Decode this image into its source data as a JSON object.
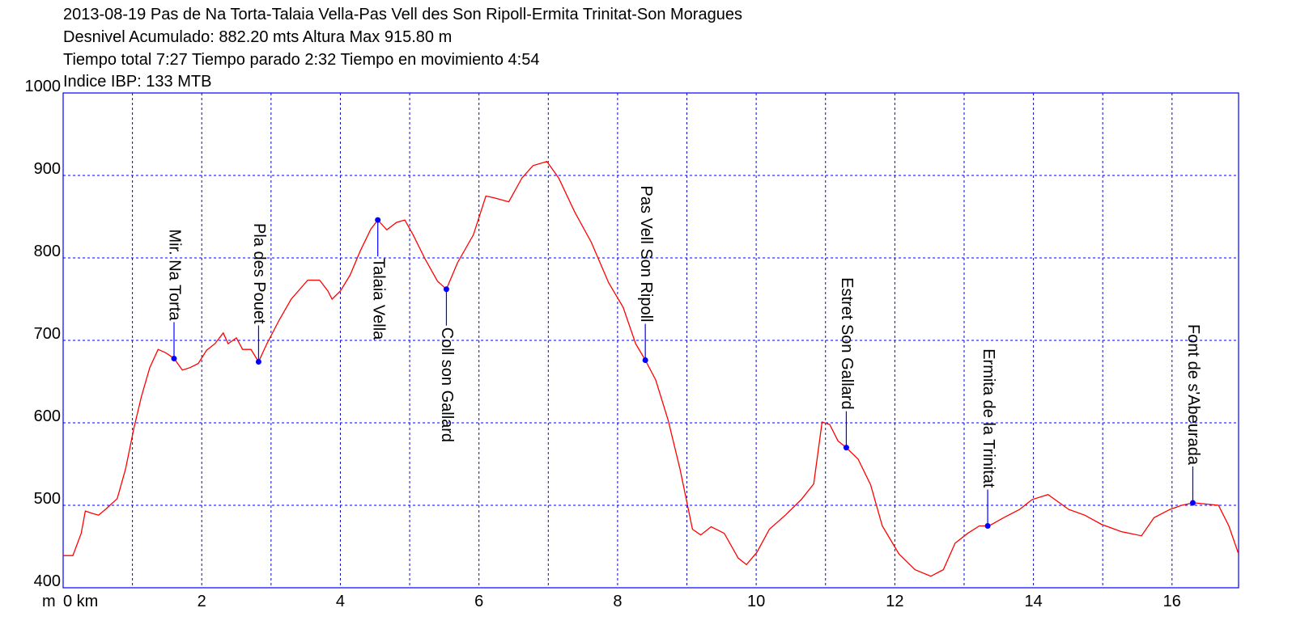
{
  "chart_data": {
    "type": "line",
    "title": "2013-08-19 Pas de Na Torta-Talaia Vella-Pas Vell des Son Ripoll-Ermita Trinitat-Son Moragues",
    "subtitles": [
      "Desnivel Acumulado: 882.20 mts  Altura Max 915.80 m",
      "Tiempo total 7:27 Tiempo parado 2:32 Tiempo en movimiento 4:54",
      "Indice IBP: 133 MTB"
    ],
    "y_unit": "m",
    "xlim": [
      0,
      16.96
    ],
    "ylim": [
      400,
      1000
    ],
    "xticks": [
      {
        "value": 0,
        "label": "0 km"
      },
      2,
      4,
      6,
      8,
      10,
      12,
      14,
      16
    ],
    "xminor": [
      1,
      3,
      5,
      7,
      9,
      11,
      13,
      15
    ],
    "yticks": [
      400,
      500,
      600,
      700,
      800,
      900,
      1000
    ],
    "grid": true,
    "series": [
      {
        "color": "#ff0000",
        "x": [
          0,
          0.14,
          0.26,
          0.32,
          0.43,
          0.51,
          0.61,
          0.78,
          0.9,
          1.02,
          1.13,
          1.25,
          1.37,
          1.48,
          1.6,
          1.72,
          1.83,
          1.95,
          2.07,
          2.19,
          2.31,
          2.38,
          2.5,
          2.59,
          2.71,
          2.82,
          2.94,
          3.12,
          3.29,
          3.53,
          3.7,
          3.82,
          3.88,
          4.0,
          4.14,
          4.29,
          4.44,
          4.54,
          4.67,
          4.81,
          4.93,
          5.05,
          5.22,
          5.4,
          5.53,
          5.69,
          5.92,
          6.1,
          6.21,
          6.43,
          6.62,
          6.78,
          6.98,
          7.15,
          7.38,
          7.62,
          7.87,
          8.08,
          8.26,
          8.4,
          8.55,
          8.73,
          8.9,
          9.08,
          9.2,
          9.35,
          9.54,
          9.74,
          9.86,
          10.01,
          10.19,
          10.42,
          10.65,
          10.83,
          10.95,
          11.06,
          11.18,
          11.3,
          11.47,
          11.65,
          11.82,
          12.06,
          12.29,
          12.52,
          12.7,
          12.87,
          13.05,
          13.22,
          13.36,
          13.57,
          13.8,
          13.98,
          14.21,
          14.51,
          14.74,
          14.98,
          15.27,
          15.56,
          15.74,
          15.97,
          16.14,
          16.31,
          16.67,
          16.82,
          16.96
        ],
        "values": [
          439,
          439,
          466,
          493,
          490,
          488,
          495,
          508,
          544,
          593,
          632,
          667,
          689,
          685,
          678,
          664,
          667,
          672,
          688,
          696,
          709,
          696,
          703,
          689,
          689,
          674,
          696,
          725,
          750,
          773,
          773,
          760,
          750,
          760,
          779,
          809,
          835,
          846,
          834,
          843,
          846,
          828,
          799,
          772,
          762,
          794,
          828,
          875,
          873,
          868,
          897,
          912,
          917,
          897,
          856,
          819,
          770,
          740,
          696,
          676,
          652,
          603,
          544,
          471,
          464,
          474,
          466,
          436,
          428,
          443,
          471,
          488,
          507,
          526,
          601,
          598,
          578,
          570,
          556,
          525,
          475,
          441,
          422,
          414,
          422,
          454,
          466,
          475,
          475,
          485,
          495,
          507,
          513,
          495,
          488,
          477,
          468,
          463,
          485,
          495,
          500,
          503,
          500,
          475,
          441
        ]
      }
    ],
    "waypoints": [
      {
        "label": "Mir. Na Torta",
        "x": 1.6,
        "y": 678
      },
      {
        "label": "Pla des Pouet",
        "x": 2.82,
        "y": 674
      },
      {
        "label": "Talaia Vella",
        "x": 4.54,
        "y": 846
      },
      {
        "label": "Coll son Gallard",
        "x": 5.53,
        "y": 762
      },
      {
        "label": "Pas Vell Son Ripoll",
        "x": 8.4,
        "y": 676
      },
      {
        "label": "Estret Son Gallard",
        "x": 11.3,
        "y": 570
      },
      {
        "label": "Ermita de la Trinitat",
        "x": 13.34,
        "y": 475
      },
      {
        "label": "Font de s'Abeurada",
        "x": 16.3,
        "y": 503
      }
    ]
  }
}
